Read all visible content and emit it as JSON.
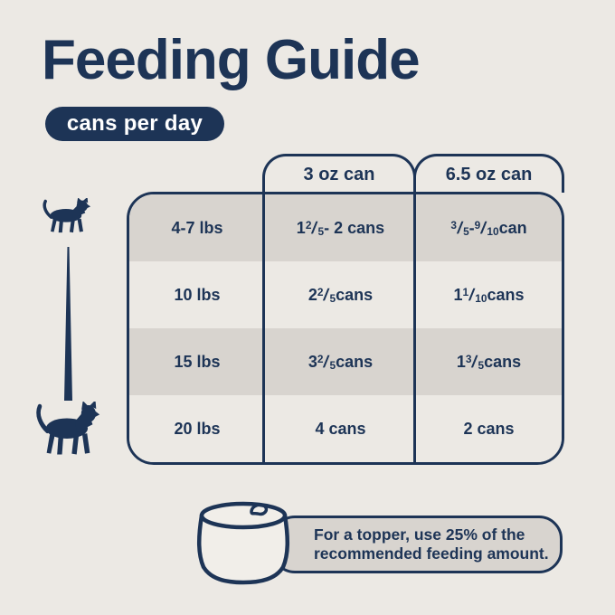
{
  "title": "Feeding Guide",
  "badge": "cans per day",
  "colors": {
    "navy": "#1d3456",
    "background": "#ece9e4",
    "row_dark": "#d8d4cf",
    "note_bg": "#d8d4cf",
    "can_fill": "#f1eee9",
    "badge_text": "#ffffff"
  },
  "table": {
    "column_headers": [
      "3 oz can",
      "6.5 oz can"
    ],
    "rows": [
      {
        "weight": "4-7 lbs",
        "can_3oz": "1 {2/5} - 2 cans",
        "can_6_5oz": "{3/5} - {9/10} can"
      },
      {
        "weight": "10 lbs",
        "can_3oz": "2 {2/5} cans",
        "can_6_5oz": "1 {1/10} cans"
      },
      {
        "weight": "15 lbs",
        "can_3oz": "3 {2/5} cans",
        "can_6_5oz": "1 {3/5} cans"
      },
      {
        "weight": "20 lbs",
        "can_3oz": "4 cans",
        "can_6_5oz": "2 cans"
      }
    ]
  },
  "note": {
    "line1": "For a topper, use 25% of the",
    "line2": "recommended feeding amount."
  },
  "icons": {
    "small_cat": "small-cat-silhouette",
    "large_cat": "large-cat-silhouette",
    "taper": "size-increase-taper",
    "can": "cat-food-can"
  }
}
